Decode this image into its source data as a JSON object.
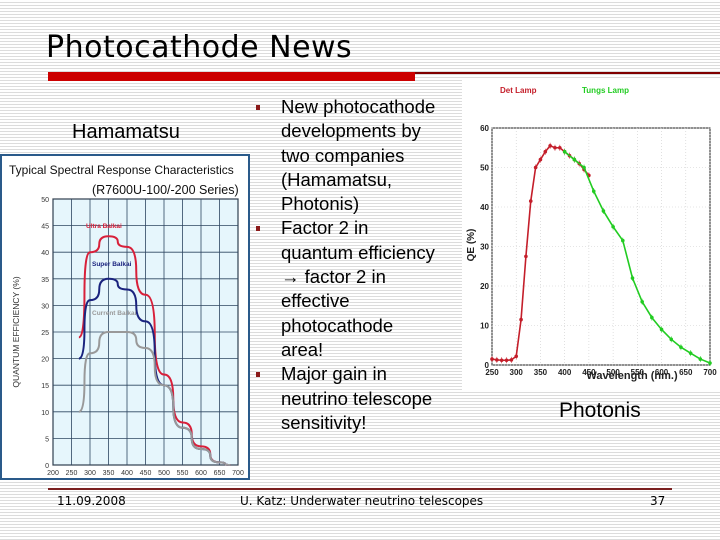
{
  "slide": {
    "title": "Photocathode News",
    "labels": {
      "left": "Hamamatsu",
      "right": "Photonis"
    },
    "bullets": [
      {
        "lines": [
          "New photocathode",
          "developments by",
          "two companies",
          "(Hamamatsu,",
          "Photonis)"
        ]
      },
      {
        "lines": [
          "Factor 2 in",
          "quantum efficiency",
          "→ factor 2 in",
          "effective",
          "photocathode",
          "area!"
        ]
      },
      {
        "lines": [
          "Major gain in",
          "neutrino telescope",
          "sensitivity!"
        ]
      }
    ],
    "footer": {
      "date": "11.09.2008",
      "center": "U. Katz: Underwater neutrino telescopes",
      "page": "37"
    },
    "colors": {
      "accent_red": "#cc0000",
      "footer_line": "#7a2020",
      "panel_border": "#2a5a8a"
    }
  },
  "chart_data": [
    {
      "type": "line",
      "title": "Typical Spectral Response Characteristics",
      "subtitle": "(R7600U-100/-200 Series)",
      "xlabel": "WAVELENGTH (nm)",
      "ylabel": "QUANTUM EFFICIENCY (%)",
      "xlim": [
        200,
        700
      ],
      "ylim": [
        0,
        50
      ],
      "xticks": [
        200,
        250,
        300,
        350,
        400,
        450,
        500,
        550,
        600,
        650,
        700
      ],
      "yticks": [
        0,
        5,
        10,
        15,
        20,
        25,
        30,
        35,
        40,
        45,
        50
      ],
      "grid": true,
      "x": [
        270,
        300,
        350,
        400,
        450,
        500,
        550,
        600,
        650,
        680
      ],
      "series": [
        {
          "name": "Ultra Bialkali",
          "color": "#d8203a",
          "values": [
            24,
            40,
            43,
            41,
            32,
            17,
            8,
            3.5,
            0.5,
            0
          ]
        },
        {
          "name": "Super Bialkali",
          "color": "#1a237e",
          "values": [
            20,
            31,
            35,
            33,
            27,
            15,
            7,
            3,
            0.5,
            0
          ]
        },
        {
          "name": "Current Bialkali",
          "color": "#999999",
          "values": [
            10,
            21,
            25,
            25,
            22,
            15,
            7,
            3,
            0.5,
            0
          ]
        }
      ]
    },
    {
      "type": "line",
      "title": "",
      "xlabel": "Wavelength (nm.)",
      "ylabel": "QE (%)",
      "xlim": [
        250,
        700
      ],
      "ylim": [
        0,
        60
      ],
      "xticks": [
        250,
        300,
        350,
        400,
        450,
        500,
        550,
        600,
        650,
        700
      ],
      "yticks": [
        0,
        10,
        20,
        30,
        40,
        50,
        60
      ],
      "grid": true,
      "legend": [
        "Det Lamp",
        "Tungs Lamp"
      ],
      "series": [
        {
          "name": "Det Lamp",
          "color": "#c41e2a",
          "x": [
            250,
            260,
            270,
            280,
            290,
            300,
            310,
            320,
            330,
            340,
            350,
            360,
            370,
            380,
            390,
            400,
            410,
            420,
            430,
            440,
            450
          ],
          "values": [
            1.5,
            1.3,
            1.2,
            1.2,
            1.3,
            2.2,
            11.5,
            27.5,
            41.5,
            50,
            52,
            54,
            55.5,
            55,
            55,
            54,
            53,
            52,
            51,
            49.5,
            48
          ]
        },
        {
          "name": "Tungs Lamp",
          "color": "#22cc22",
          "x": [
            400,
            420,
            440,
            460,
            480,
            500,
            520,
            540,
            560,
            580,
            600,
            620,
            640,
            660,
            680,
            700
          ],
          "values": [
            54,
            52,
            50,
            44,
            39,
            35,
            31.5,
            22,
            16,
            12,
            9,
            6.5,
            4.5,
            3,
            1.5,
            0.5
          ]
        }
      ]
    }
  ]
}
